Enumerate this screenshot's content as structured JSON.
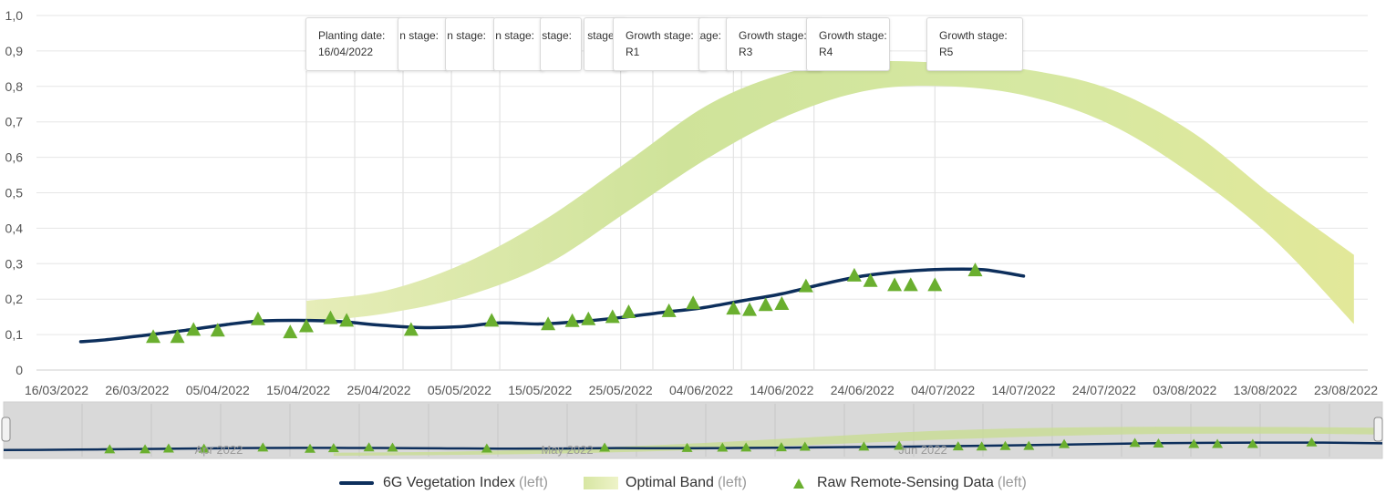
{
  "chart_data": {
    "type": "line",
    "x_axis_type": "date",
    "y_axis_tick_labels": [
      "0",
      "0,1",
      "0,2",
      "0,3",
      "0,4",
      "0,5",
      "0,6",
      "0,7",
      "0,8",
      "0,9",
      "1,0"
    ],
    "ylim": [
      0,
      1.0
    ],
    "x_tick_labels": [
      "16/03/2022",
      "26/03/2022",
      "05/04/2022",
      "15/04/2022",
      "25/04/2022",
      "05/05/2022",
      "15/05/2022",
      "25/05/2022",
      "04/06/2022",
      "14/06/2022",
      "24/06/2022",
      "04/07/2022",
      "14/07/2022",
      "24/07/2022",
      "03/08/2022",
      "13/08/2022",
      "23/08/2022"
    ],
    "grid": true,
    "legend_position": "bottom-center",
    "series": [
      {
        "name": "6G Vegetation Index",
        "axis_label": "(left)",
        "kind": "line",
        "color": "#0d2f5c",
        "points": [
          [
            "2022-03-19",
            0.08
          ],
          [
            "2022-03-22",
            0.085
          ],
          [
            "2022-03-27",
            0.098
          ],
          [
            "2022-04-01",
            0.112
          ],
          [
            "2022-04-06",
            0.128
          ],
          [
            "2022-04-10",
            0.138
          ],
          [
            "2022-04-15",
            0.14
          ],
          [
            "2022-04-20",
            0.137
          ],
          [
            "2022-04-25",
            0.127
          ],
          [
            "2022-04-30",
            0.12
          ],
          [
            "2022-05-05",
            0.122
          ],
          [
            "2022-05-10",
            0.133
          ],
          [
            "2022-05-15",
            0.13
          ],
          [
            "2022-05-20",
            0.137
          ],
          [
            "2022-05-25",
            0.148
          ],
          [
            "2022-05-30",
            0.162
          ],
          [
            "2022-06-04",
            0.175
          ],
          [
            "2022-06-09",
            0.195
          ],
          [
            "2022-06-14",
            0.215
          ],
          [
            "2022-06-19",
            0.242
          ],
          [
            "2022-06-24",
            0.265
          ],
          [
            "2022-06-29",
            0.278
          ],
          [
            "2022-07-04",
            0.284
          ],
          [
            "2022-07-09",
            0.283
          ],
          [
            "2022-07-14",
            0.265
          ]
        ]
      },
      {
        "name": "Optimal Band",
        "axis_label": "(left)",
        "kind": "band",
        "color_start": "#d7e6a3",
        "color_end": "#e2e899",
        "points": [
          [
            "2022-04-16",
            0.135,
            0.195
          ],
          [
            "2022-04-26",
            0.16,
            0.225
          ],
          [
            "2022-05-06",
            0.21,
            0.305
          ],
          [
            "2022-05-16",
            0.3,
            0.43
          ],
          [
            "2022-05-26",
            0.45,
            0.59
          ],
          [
            "2022-06-05",
            0.6,
            0.75
          ],
          [
            "2022-06-15",
            0.72,
            0.84
          ],
          [
            "2022-06-25",
            0.79,
            0.87
          ],
          [
            "2022-07-05",
            0.8,
            0.865
          ],
          [
            "2022-07-15",
            0.77,
            0.845
          ],
          [
            "2022-07-25",
            0.69,
            0.79
          ],
          [
            "2022-08-04",
            0.55,
            0.67
          ],
          [
            "2022-08-14",
            0.37,
            0.49
          ],
          [
            "2022-08-24",
            0.13,
            0.325
          ]
        ]
      },
      {
        "name": "Raw Remote-Sensing Data",
        "axis_label": "(left)",
        "kind": "scatter",
        "marker": "triangle",
        "color": "#6aaf2f",
        "points": [
          [
            "2022-03-28",
            0.092
          ],
          [
            "2022-03-31",
            0.092
          ],
          [
            "2022-04-02",
            0.112
          ],
          [
            "2022-04-05",
            0.11
          ],
          [
            "2022-04-10",
            0.142
          ],
          [
            "2022-04-14",
            0.105
          ],
          [
            "2022-04-16",
            0.122
          ],
          [
            "2022-04-19",
            0.145
          ],
          [
            "2022-04-21",
            0.138
          ],
          [
            "2022-04-29",
            0.112
          ],
          [
            "2022-05-09",
            0.138
          ],
          [
            "2022-05-16",
            0.128
          ],
          [
            "2022-05-19",
            0.137
          ],
          [
            "2022-05-21",
            0.142
          ],
          [
            "2022-05-24",
            0.148
          ],
          [
            "2022-05-26",
            0.162
          ],
          [
            "2022-05-31",
            0.165
          ],
          [
            "2022-06-03",
            0.187
          ],
          [
            "2022-06-08",
            0.172
          ],
          [
            "2022-06-10",
            0.168
          ],
          [
            "2022-06-12",
            0.182
          ],
          [
            "2022-06-14",
            0.185
          ],
          [
            "2022-06-17",
            0.235
          ],
          [
            "2022-06-23",
            0.265
          ],
          [
            "2022-06-25",
            0.25
          ],
          [
            "2022-06-28",
            0.238
          ],
          [
            "2022-06-30",
            0.238
          ],
          [
            "2022-07-03",
            0.238
          ],
          [
            "2022-07-08",
            0.28
          ]
        ]
      }
    ],
    "annotations": [
      {
        "title": "Planting date:",
        "value": "16/04/2022",
        "date": "2022-04-16"
      },
      {
        "title": "n stage:",
        "value": "",
        "date": "2022-04-22"
      },
      {
        "title": "n stage:",
        "value": "",
        "date": "2022-04-28"
      },
      {
        "title": "n stage:",
        "value": "",
        "date": "2022-05-04"
      },
      {
        "title": "stage:",
        "value": "",
        "date": "2022-05-10"
      },
      {
        "title": "stage:",
        "value": "",
        "date": "2022-05-25"
      },
      {
        "title": "Growth stage:",
        "value": "R1",
        "date": "2022-05-29"
      },
      {
        "title": "stage:",
        "value": "",
        "date": "2022-06-09"
      },
      {
        "title": "Growth stage:",
        "value": "R3",
        "date": "2022-06-08"
      },
      {
        "title": "Growth stage:",
        "value": "R4",
        "date": "2022-06-18"
      },
      {
        "title": "Growth stage:",
        "value": "R5",
        "date": "2022-07-03"
      }
    ]
  },
  "navigator": {
    "labels": [
      "Apr 2022",
      "May 2022",
      "Jun 2022"
    ]
  },
  "legend": [
    {
      "name": "6G Vegetation Index",
      "axis": "(left)"
    },
    {
      "name": "Optimal Band",
      "axis": "(left)"
    },
    {
      "name": "Raw Remote-Sensing Data",
      "axis": "(left)"
    }
  ]
}
